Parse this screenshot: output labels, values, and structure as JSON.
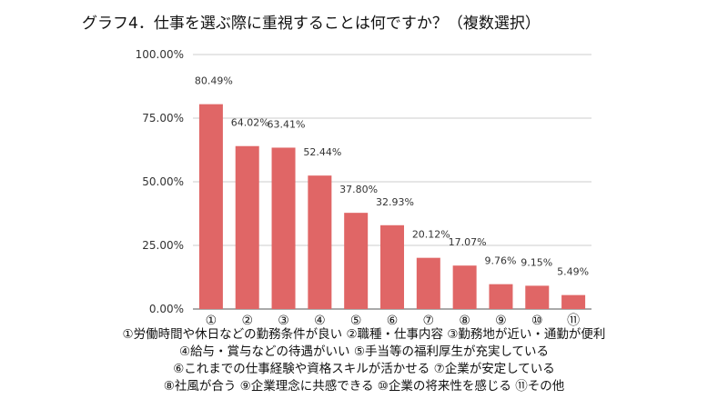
{
  "chart_data": {
    "type": "bar",
    "title": "グラフ4．仕事を選ぶ際に重視することは何ですか？（複数選択）",
    "categories": [
      "①",
      "②",
      "③",
      "④",
      "⑤",
      "⑥",
      "⑦",
      "⑧",
      "⑨",
      "⑩",
      "⑪"
    ],
    "values": [
      80.49,
      64.02,
      63.41,
      52.44,
      37.8,
      32.93,
      20.12,
      17.07,
      9.76,
      9.15,
      5.49
    ],
    "value_labels": [
      "80.49%",
      "64.02%",
      "63.41%",
      "52.44%",
      "37.80%",
      "32.93%",
      "20.12%",
      "17.07%",
      "9.76%",
      "9.15%",
      "5.49%"
    ],
    "yticks": [
      0,
      25,
      50,
      75,
      100
    ],
    "ytick_labels": [
      "0.00%",
      "25.00%",
      "50.00%",
      "75.00%",
      "100.00%"
    ],
    "ylim": [
      0,
      100
    ],
    "xlabel": "",
    "ylabel": "",
    "grid": true,
    "bar_color": "#e06666",
    "grid_color": "#cccccc",
    "notes": [
      "①労働時間や休日などの勤務条件が良い ②職種・仕事内容 ③勤務地が近い・通勤が便利",
      "④給与・賞与などの待遇がいい ⑤手当等の福利厚生が充実している",
      "⑥これまでの仕事経験や資格スキルが活かせる ⑦企業が安定している",
      "⑧社風が合う ⑨企業理念に共感できる ⑩企業の将来性を感じる ⑪その他"
    ]
  }
}
